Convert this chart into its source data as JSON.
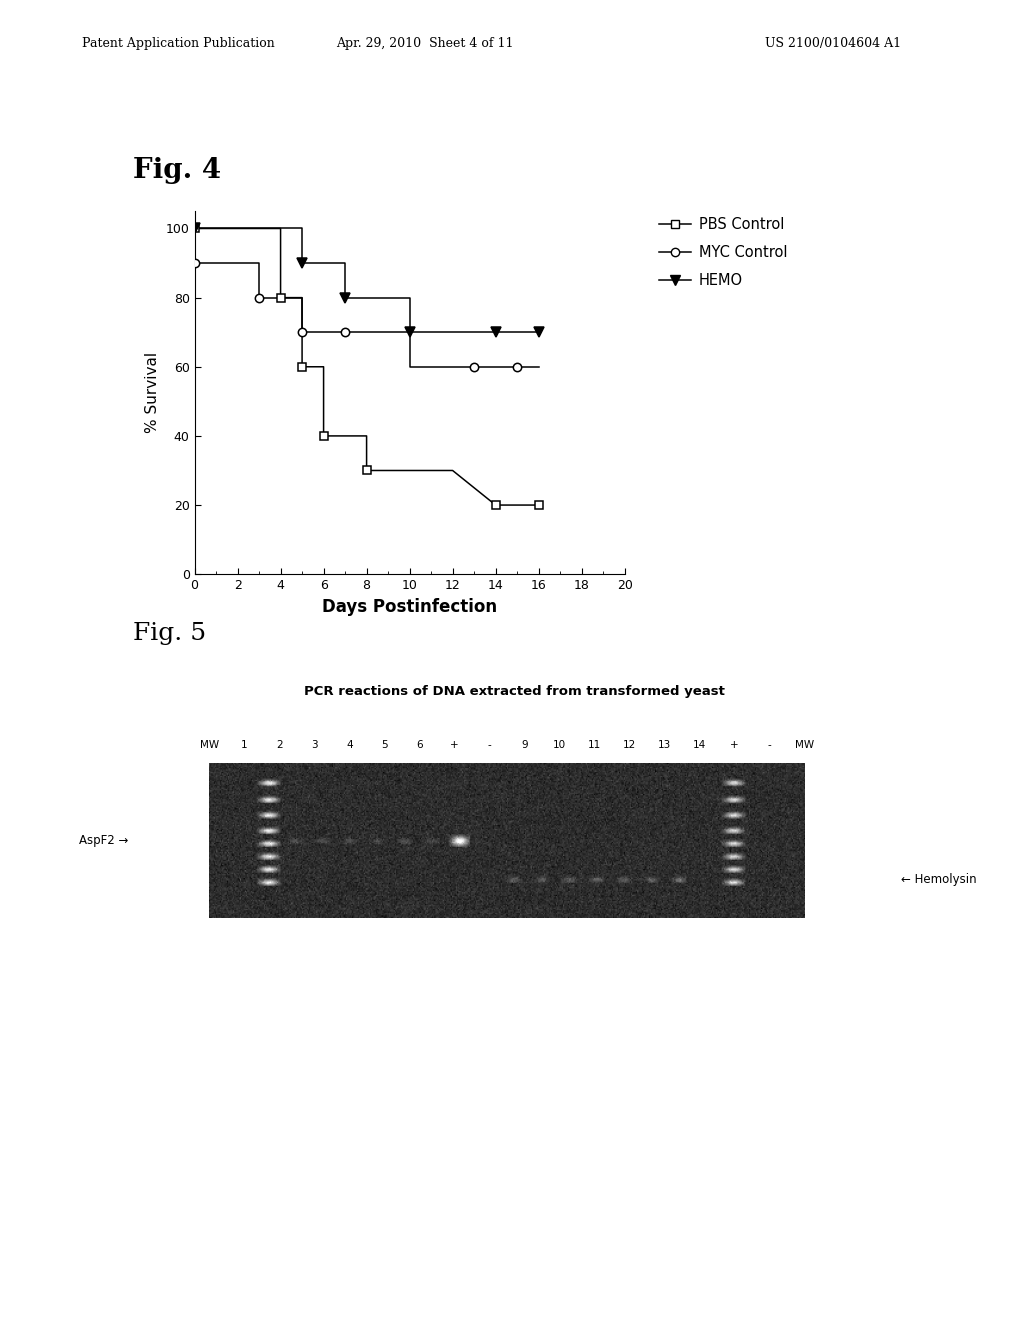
{
  "header_left": "Patent Application Publication",
  "header_center": "Apr. 29, 2010  Sheet 4 of 11",
  "header_right": "US 2100/0104604 A1",
  "fig4_label": "Fig. 4",
  "fig5_label": "Fig. 5",
  "fig4_xlabel": "Days Postinfection",
  "fig4_ylabel": "% Survival",
  "fig4_xlim": [
    0,
    20
  ],
  "fig4_ylim": [
    0,
    105
  ],
  "fig4_xticks": [
    0,
    2,
    4,
    6,
    8,
    10,
    12,
    14,
    16,
    18,
    20
  ],
  "fig4_yticks": [
    0,
    20,
    40,
    60,
    80,
    100
  ],
  "pbs_x": [
    0,
    2,
    2,
    4,
    4,
    5,
    5,
    6,
    6,
    8,
    8,
    12,
    12,
    14,
    14,
    16,
    16
  ],
  "pbs_y": [
    100,
    100,
    100,
    100,
    80,
    80,
    60,
    60,
    40,
    40,
    30,
    30,
    30,
    20,
    20,
    20,
    20
  ],
  "myc_x": [
    0,
    3,
    3,
    5,
    5,
    7,
    7,
    10,
    10,
    13,
    13,
    16
  ],
  "myc_y": [
    90,
    90,
    80,
    80,
    70,
    70,
    70,
    70,
    60,
    60,
    60,
    60
  ],
  "hemo_x": [
    0,
    5,
    5,
    7,
    7,
    10,
    10,
    14,
    14,
    16
  ],
  "hemo_y": [
    100,
    100,
    90,
    90,
    80,
    80,
    70,
    70,
    70,
    70
  ],
  "pbs_markers_x": [
    0,
    4,
    5,
    6,
    8,
    14,
    16
  ],
  "pbs_markers_y": [
    100,
    80,
    60,
    40,
    30,
    20,
    20
  ],
  "myc_markers_x": [
    0,
    3,
    5,
    7,
    13,
    15
  ],
  "myc_markers_y": [
    90,
    80,
    70,
    70,
    60,
    60
  ],
  "hemo_markers_x": [
    0,
    5,
    7,
    10,
    14,
    16
  ],
  "hemo_markers_y": [
    100,
    90,
    80,
    70,
    70,
    70
  ],
  "legend_labels": [
    "PBS Control",
    "MYC Control",
    "HEMO"
  ],
  "gel_title": "PCR reactions of DNA extracted from transformed yeast",
  "gel_lane_labels": [
    "MW",
    "1",
    "2",
    "3",
    "4",
    "5",
    "6",
    "+",
    "-",
    "9",
    "10",
    "11",
    "12",
    "13",
    "14",
    "+",
    "-",
    "MW"
  ],
  "gel_left_label": "AspF2",
  "gel_right_label": "Hemolysin",
  "background_color": "#ffffff"
}
